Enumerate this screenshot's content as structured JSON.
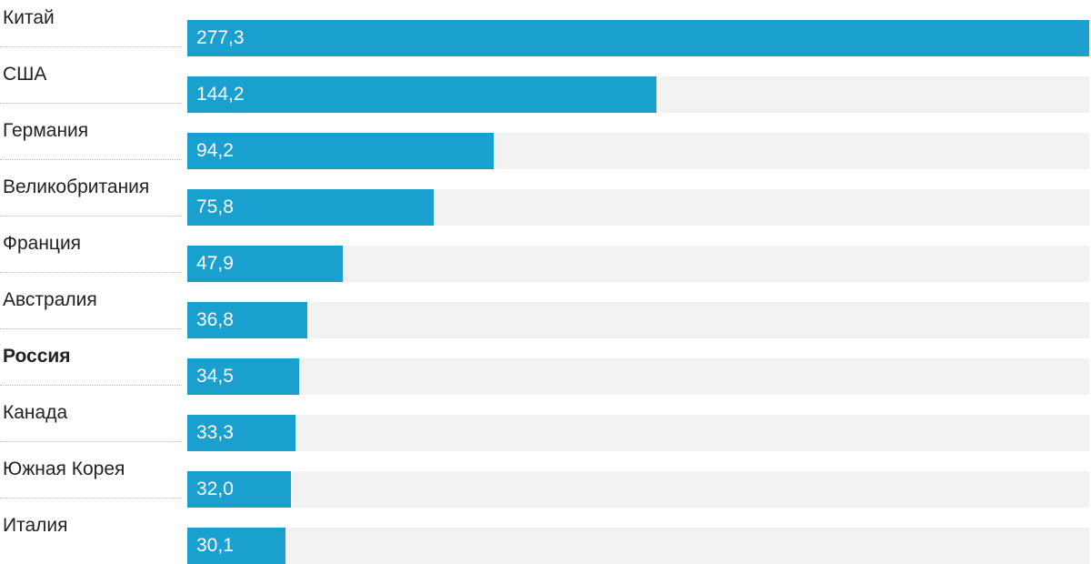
{
  "chart_data": {
    "type": "bar",
    "orientation": "horizontal",
    "categories": [
      "Китай",
      "США",
      "Германия",
      "Великобритания",
      "Франция",
      "Австралия",
      "Россия",
      "Канада",
      "Южная Корея",
      "Италия"
    ],
    "values": [
      277.3,
      144.2,
      94.2,
      75.8,
      47.9,
      36.8,
      34.5,
      33.3,
      32.0,
      30.1
    ],
    "value_labels": [
      "277,3",
      "144,2",
      "94,2",
      "75,8",
      "47,9",
      "36,8",
      "34,5",
      "33,3",
      "32,0",
      "30,1"
    ],
    "highlighted_category": "Россия",
    "title": "",
    "xlabel": "",
    "ylabel": "",
    "xlim": [
      0,
      277.3
    ],
    "grid": false
  },
  "colors": {
    "bar": "#1aa0cf",
    "track": "#f2f2f2",
    "label_text": "#222222",
    "value_text": "#ffffff"
  }
}
